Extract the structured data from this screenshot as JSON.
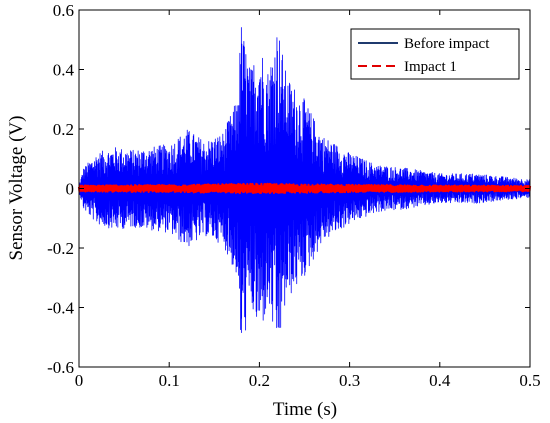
{
  "chart_data": {
    "type": "line",
    "xlabel": "Time (s)",
    "ylabel": "Sensor Voltage (V)",
    "xlim": [
      0,
      0.5
    ],
    "ylim": [
      -0.6,
      0.6
    ],
    "x_ticks": [
      0,
      0.1,
      0.2,
      0.3,
      0.4,
      0.5
    ],
    "x_tick_labels": [
      "0",
      "0.1",
      "0.2",
      "0.3",
      "0.4",
      "0.5"
    ],
    "y_ticks": [
      -0.6,
      -0.4,
      -0.2,
      0,
      0.2,
      0.4,
      0.6
    ],
    "y_tick_labels": [
      "-0.6",
      "-0.4",
      "-0.2",
      "0",
      "0.2",
      "0.4",
      "0.6"
    ],
    "grid": false,
    "legend_position": "top-right",
    "series": [
      {
        "name": "Before impact",
        "legend_color": "#1f3a6e",
        "plot_color": "#0000ff",
        "line_style": "solid",
        "envelope": {
          "t": [
            0,
            0.005,
            0.02,
            0.04,
            0.06,
            0.08,
            0.1,
            0.12,
            0.14,
            0.16,
            0.175,
            0.18,
            0.19,
            0.2,
            0.21,
            0.22,
            0.23,
            0.25,
            0.27,
            0.3,
            0.33,
            0.36,
            0.4,
            0.44,
            0.47,
            0.5
          ],
          "amplitude": [
            0.01,
            0.07,
            0.12,
            0.14,
            0.13,
            0.14,
            0.15,
            0.2,
            0.16,
            0.19,
            0.3,
            0.56,
            0.4,
            0.5,
            0.4,
            0.56,
            0.38,
            0.3,
            0.18,
            0.12,
            0.08,
            0.07,
            0.05,
            0.05,
            0.04,
            0.03
          ]
        }
      },
      {
        "name": "Impact 1",
        "legend_color": "#e00000",
        "plot_color": "#ff0000",
        "line_style": "dashed",
        "envelope": {
          "t": [
            0,
            0.1,
            0.2,
            0.3,
            0.4,
            0.5
          ],
          "amplitude": [
            0.01,
            0.012,
            0.016,
            0.012,
            0.01,
            0.009
          ]
        }
      }
    ]
  }
}
